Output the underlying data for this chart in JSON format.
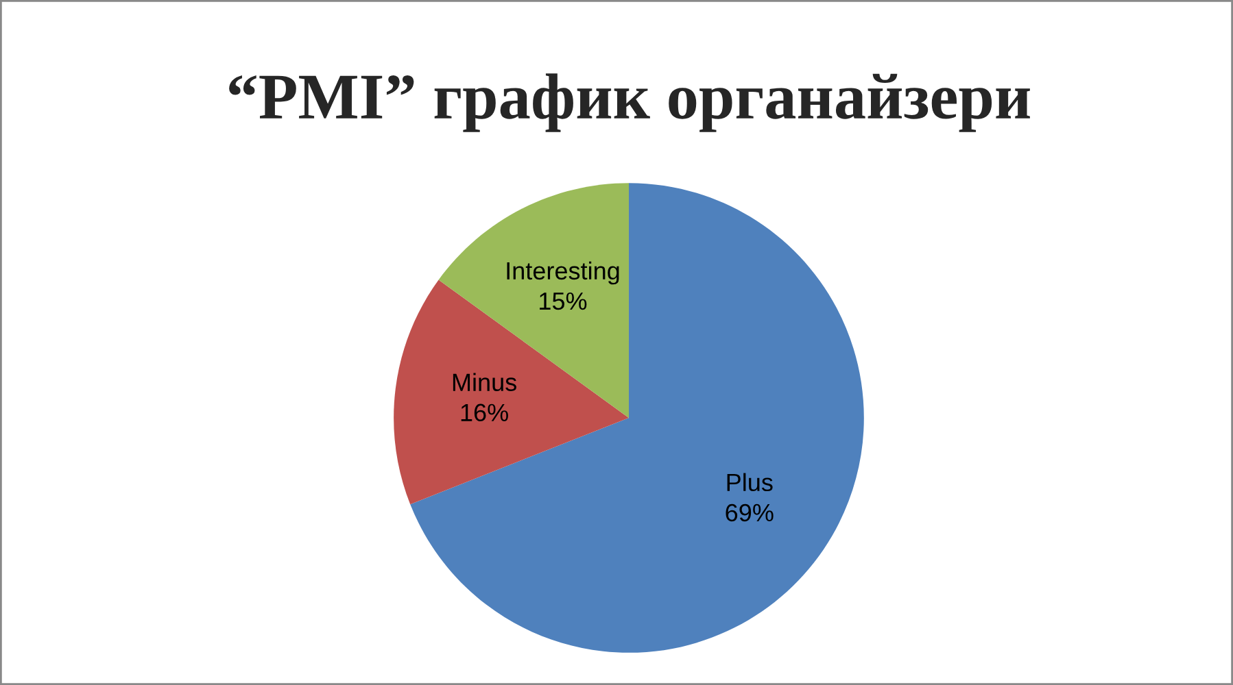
{
  "chart_data": {
    "type": "pie",
    "title": "“PMI” график органайзери",
    "categories": [
      "Plus",
      "Minus",
      "Interesting"
    ],
    "values": [
      69,
      16,
      15
    ],
    "colors": [
      "#4f81bd",
      "#c0504d",
      "#9bbb59"
    ],
    "value_labels": [
      "69%",
      "16%",
      "15%"
    ],
    "legend": false
  }
}
